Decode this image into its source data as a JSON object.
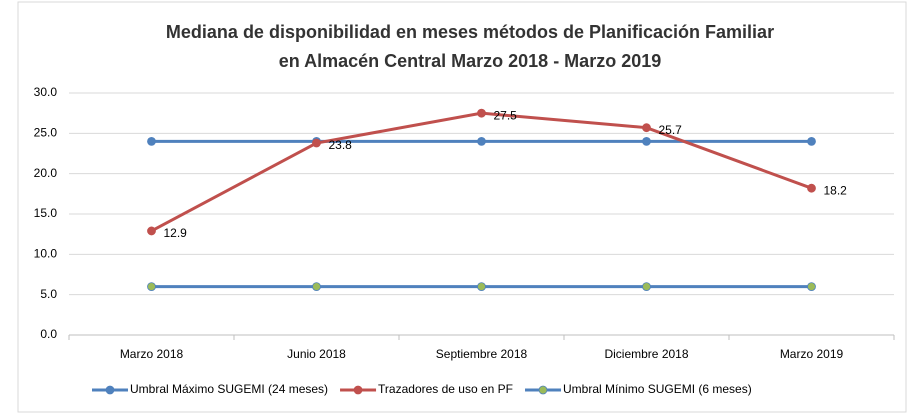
{
  "chart_data": {
    "type": "line",
    "title": [
      "Mediana de disponibilidad en meses métodos de Planificación Familiar",
      "en Almacén Central    Marzo 2018 - Marzo 2019"
    ],
    "categories": [
      "Marzo 2018",
      "Junio 2018",
      "Septiembre 2018",
      "Diciembre 2018",
      "Marzo 2019"
    ],
    "series": [
      {
        "name": "Umbral Máximo SUGEMI (24 meses)",
        "color": "#4f81bd",
        "marker_color": "#4f81bd",
        "values": [
          24,
          24,
          24,
          24,
          24
        ]
      },
      {
        "name": "Trazadores de uso en PF",
        "color": "#c0504d",
        "marker_color": "#c0504d",
        "values": [
          12.9,
          23.8,
          27.5,
          25.7,
          18.2
        ],
        "data_labels": true
      },
      {
        "name": "Umbral Mínimo SUGEMI (6 meses)",
        "color": "#4f81bd",
        "marker_color": "#9bbb59",
        "values": [
          6,
          6,
          6,
          6,
          6
        ]
      }
    ],
    "ylim": [
      0,
      30
    ],
    "yticks": [
      {
        "value": 0,
        "label": "0.0"
      },
      {
        "value": 5,
        "label": "5.0"
      },
      {
        "value": 10,
        "label": "10.0"
      },
      {
        "value": 15,
        "label": "15.0"
      },
      {
        "value": 20,
        "label": "20.0"
      },
      {
        "value": 25,
        "label": "25.0"
      },
      {
        "value": 30,
        "label": "30.0"
      }
    ],
    "grid": true,
    "legend": "bottom"
  }
}
